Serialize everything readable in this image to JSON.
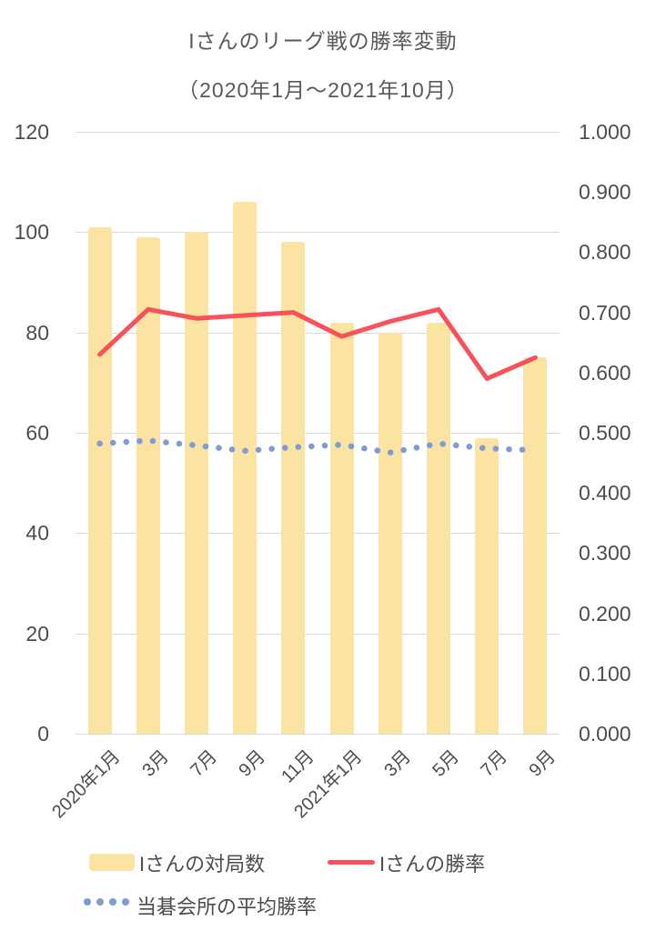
{
  "title": {
    "line1": "Iさんのリーグ戦の勝率変動",
    "line2": "（2020年1月～2021年10月）"
  },
  "colors": {
    "bar": "#FBE3A1",
    "win_rate_line": "#F8515A",
    "average_line": "#7F9BD7",
    "gridline": "#d9d9d9",
    "axis_text": "#4d4d4d",
    "title_text": "#595959"
  },
  "legend": {
    "items": [
      {
        "label": "Iさんの対局数",
        "swatch": "bar-swatch"
      },
      {
        "label": "Iさんの勝率",
        "swatch": "line-swatch"
      },
      {
        "label": "当碁会所の平均勝率",
        "swatch": "dots-swatch"
      }
    ]
  },
  "chart_data": {
    "type": "bar",
    "subtype": "combo-bar-and-lines",
    "title": "Iさんのリーグ戦の勝率変動（2020年1月～2021年10月）",
    "categories": [
      "2020年1月",
      "3月",
      "7月",
      "9月",
      "11月",
      "2021年1月",
      "3月",
      "5月",
      "7月",
      "9月"
    ],
    "series": [
      {
        "name": "Iさんの対局数",
        "type": "bar",
        "axis": "left",
        "values": [
          101,
          99,
          100,
          106,
          98,
          82,
          80,
          82,
          59,
          75
        ]
      },
      {
        "name": "Iさんの勝率",
        "type": "line",
        "axis": "right",
        "values": [
          0.63,
          0.705,
          0.69,
          0.695,
          0.7,
          0.66,
          0.685,
          0.705,
          0.59,
          0.625
        ]
      },
      {
        "name": "当碁会所の平均勝率",
        "type": "dotted-line",
        "axis": "right",
        "values": [
          0.482,
          0.487,
          0.479,
          0.47,
          0.476,
          0.48,
          0.467,
          0.482,
          0.474,
          0.471
        ]
      }
    ],
    "left_axis": {
      "ticks_top_to_bottom": [
        "120",
        "100",
        "80",
        "60",
        "40",
        "20",
        "0"
      ],
      "range": [
        0,
        120
      ]
    },
    "right_axis": {
      "ticks_top_to_bottom": [
        "1.000",
        "0.900",
        "0.800",
        "0.700",
        "0.600",
        "0.500",
        "0.400",
        "0.300",
        "0.200",
        "0.100",
        "0.000"
      ],
      "range": [
        0.0,
        1.0
      ]
    },
    "grid": true,
    "legend_position": "bottom",
    "xlabel": "",
    "ylabel_left": "",
    "ylabel_right": ""
  }
}
